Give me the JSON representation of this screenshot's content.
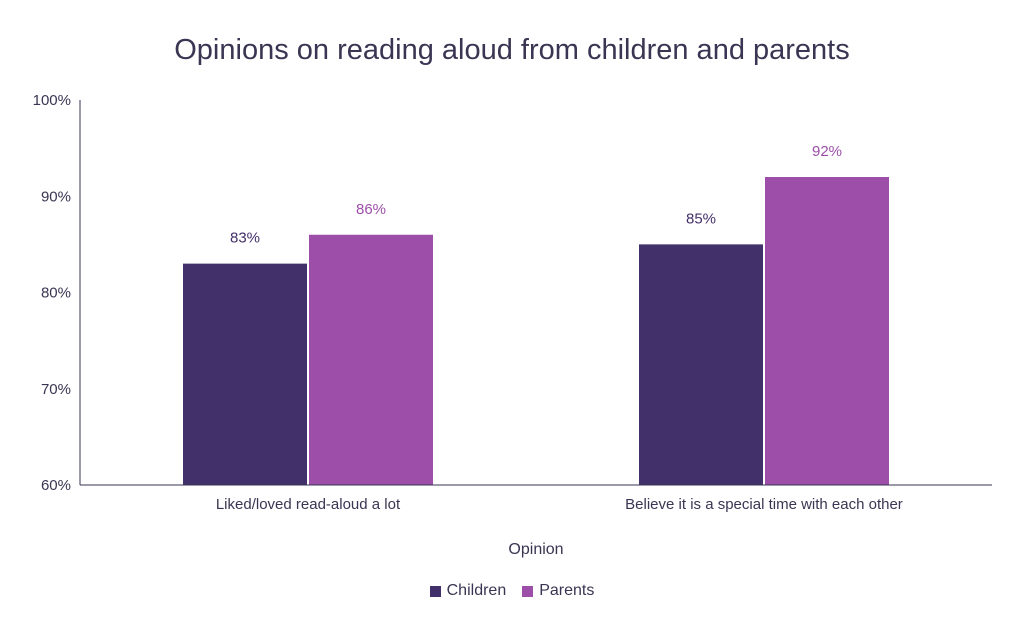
{
  "chart_data": {
    "type": "bar",
    "title": "Opinions on reading aloud from children and parents",
    "xlabel": "Opinion",
    "ylabel": "",
    "categories": [
      "Liked/loved read-aloud a lot",
      "Believe it is a special time with each other"
    ],
    "series": [
      {
        "name": "Children",
        "values": [
          83,
          85
        ],
        "labels": [
          "83%",
          "85%"
        ],
        "color": "#42306a"
      },
      {
        "name": "Parents",
        "values": [
          86,
          92
        ],
        "labels": [
          "86%",
          "92%"
        ],
        "color": "#9c4ea8"
      }
    ],
    "ylim": [
      60,
      100
    ],
    "yticks": [
      60,
      70,
      80,
      90,
      100
    ],
    "ytick_labels": [
      "60%",
      "70%",
      "80%",
      "90%",
      "100%"
    ],
    "grid": false,
    "legend_position": "bottom"
  }
}
